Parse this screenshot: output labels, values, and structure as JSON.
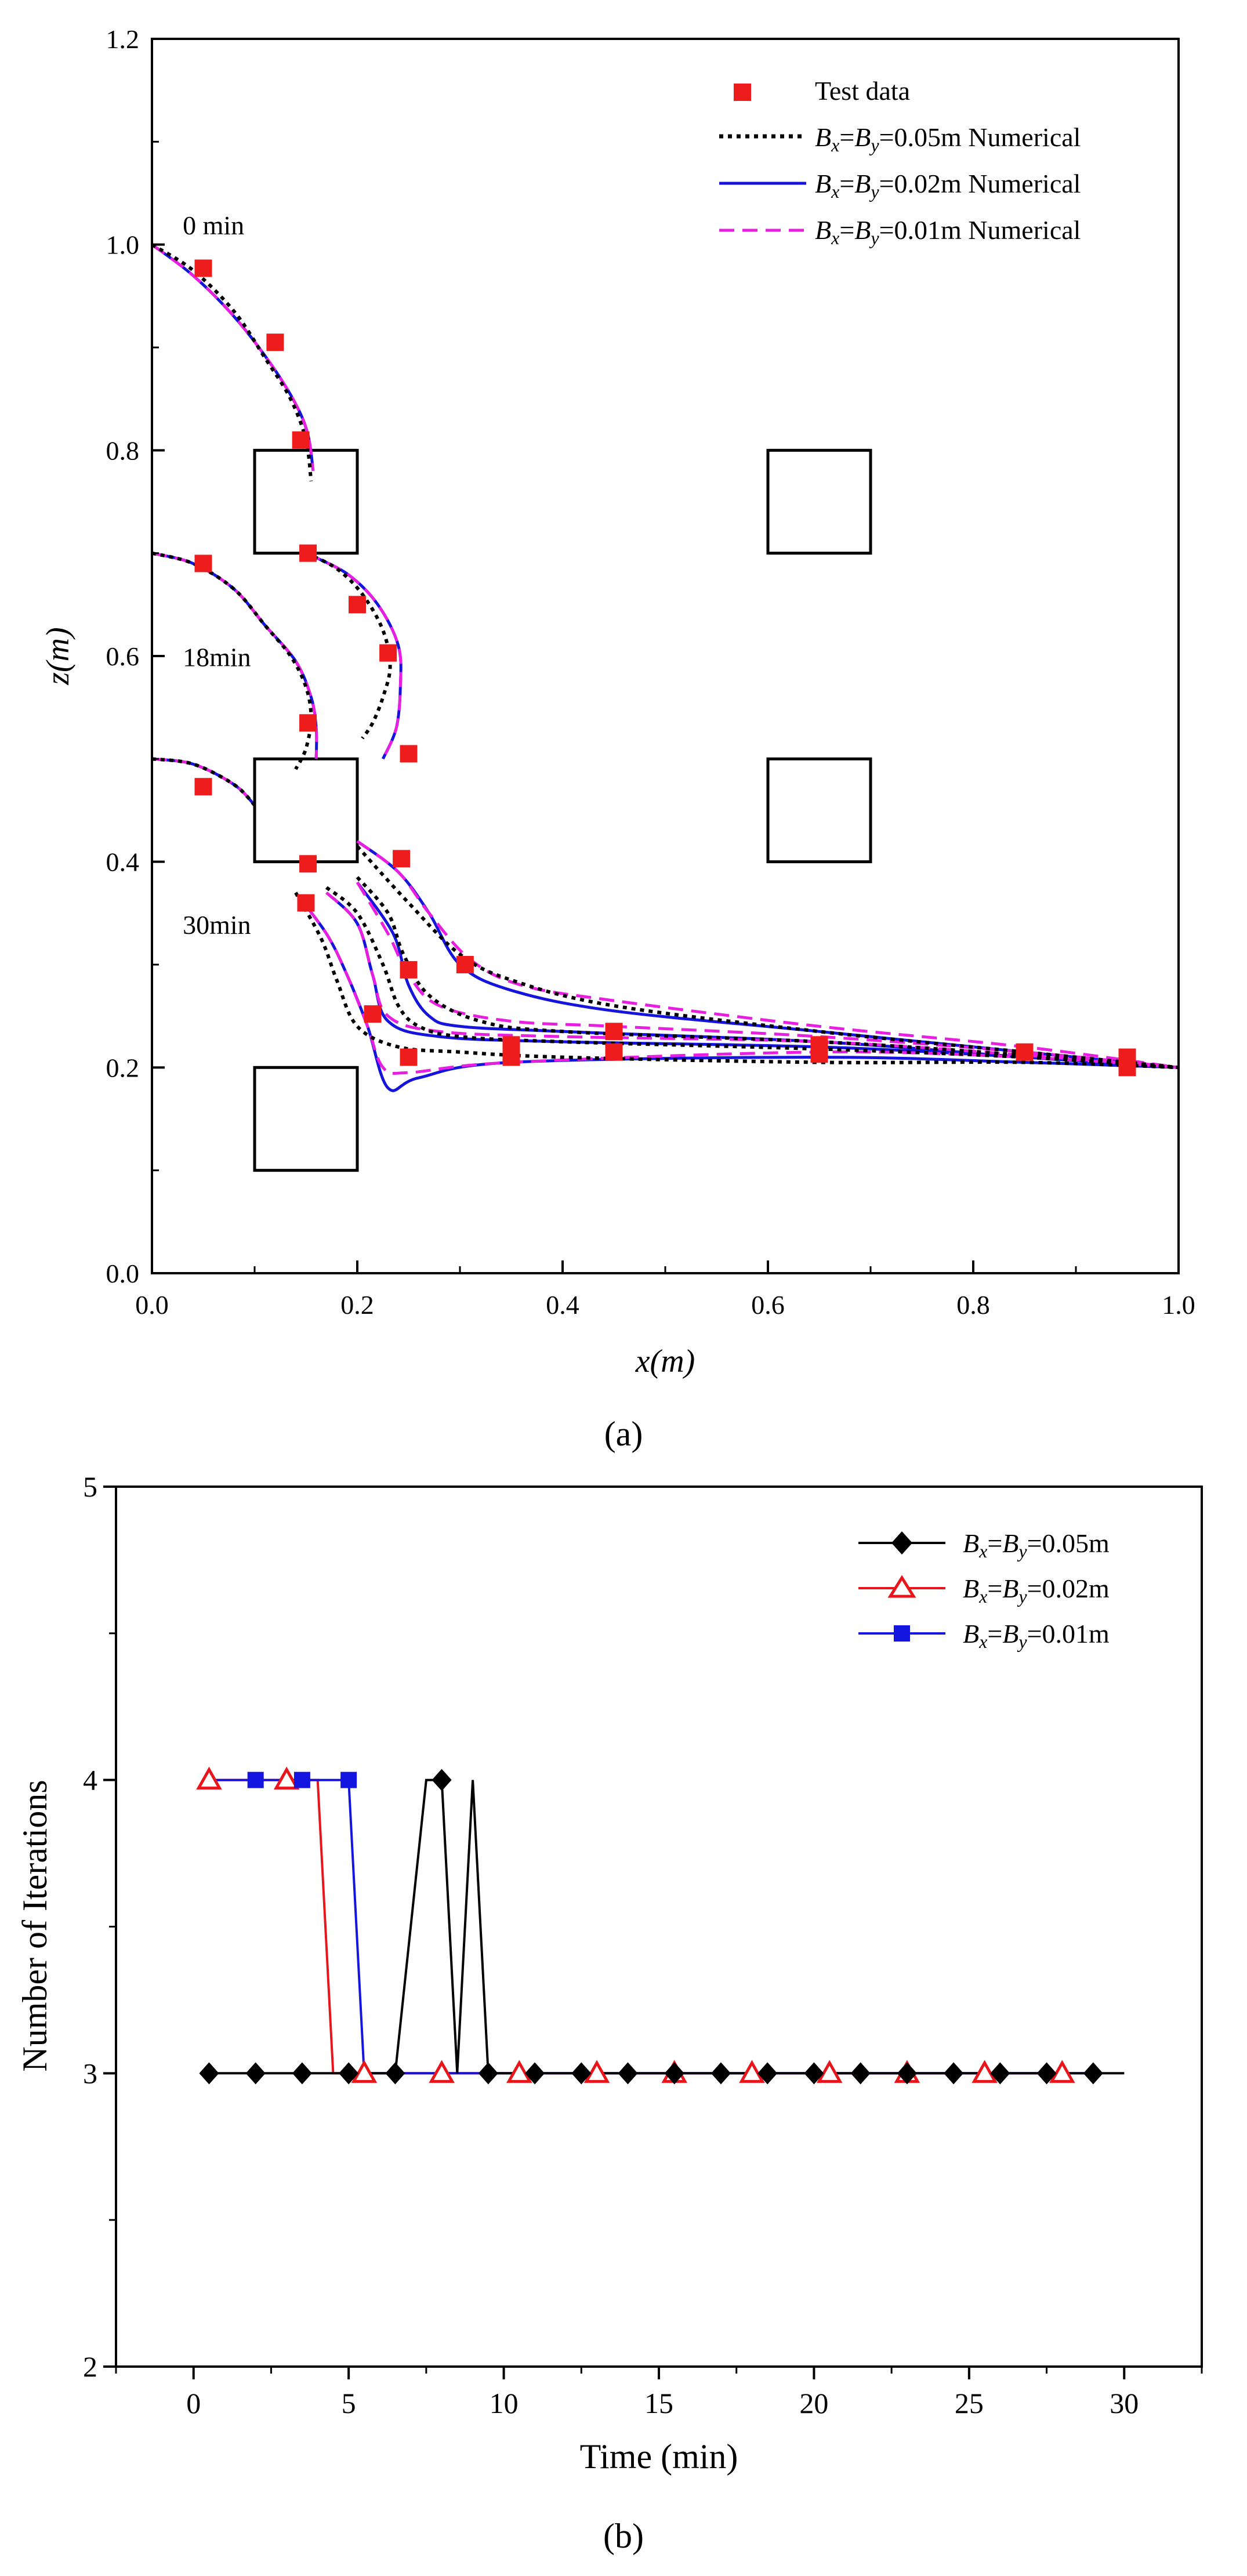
{
  "chart_data": [
    {
      "type": "line",
      "panel_label": "(a)",
      "title": "",
      "xlabel": "x(m)",
      "ylabel": "z(m)",
      "xlim": [
        0,
        1.0
      ],
      "ylim": [
        0,
        1.2
      ],
      "xticks": [
        "0.0",
        "0.2",
        "0.4",
        "0.6",
        "0.8",
        "1.0"
      ],
      "yticks": [
        "0.0",
        "0.2",
        "0.4",
        "0.6",
        "0.8",
        "1.0",
        "1.2"
      ],
      "legend_position": "top-right",
      "legend": [
        {
          "label": "Test data"
        },
        {
          "label": "Bx=By=0.05m Numerical"
        },
        {
          "label": "Bx=By=0.02m Numerical"
        },
        {
          "label": "Bx=By=0.01m Numerical"
        }
      ],
      "annotations": [
        {
          "text": "0 min",
          "x": 0.03,
          "y": 1.01
        },
        {
          "text": "18min",
          "x": 0.03,
          "y": 0.59
        },
        {
          "text": "30min",
          "x": 0.03,
          "y": 0.33
        }
      ],
      "obstacles": [
        {
          "x": [
            0.1,
            0.2
          ],
          "y": [
            0.7,
            0.8
          ]
        },
        {
          "x": [
            0.6,
            0.7
          ],
          "y": [
            0.7,
            0.8
          ]
        },
        {
          "x": [
            0.1,
            0.2
          ],
          "y": [
            0.4,
            0.5
          ]
        },
        {
          "x": [
            0.6,
            0.7
          ],
          "y": [
            0.4,
            0.5
          ]
        },
        {
          "x": [
            0.1,
            0.2
          ],
          "y": [
            0.1,
            0.2
          ]
        }
      ],
      "test_data": {
        "x": [
          0.05,
          0.12,
          0.145,
          0.152,
          0.2,
          0.23,
          0.152,
          0.25,
          0.05,
          0.152,
          0.243,
          0.05,
          0.15,
          0.25,
          0.305,
          0.215,
          0.25,
          0.35,
          0.35,
          0.45,
          0.45,
          0.65,
          0.65,
          0.85,
          0.95,
          0.95
        ],
        "y": [
          0.977,
          0.905,
          0.81,
          0.7,
          0.65,
          0.603,
          0.535,
          0.505,
          0.69,
          0.398,
          0.403,
          0.473,
          0.36,
          0.295,
          0.3,
          0.252,
          0.21,
          0.222,
          0.21,
          0.235,
          0.215,
          0.222,
          0.213,
          0.215,
          0.21,
          0.2
        ]
      },
      "series": [
        {
          "name": "Bx=By=0.05m Numerical",
          "style": "dotted-black",
          "curves": [
            {
              "x": [
                0,
                0.04,
                0.08,
                0.11,
                0.135,
                0.15,
                0.155
              ],
              "y": [
                1.0,
                0.975,
                0.935,
                0.89,
                0.85,
                0.81,
                0.77
              ]
            },
            {
              "x": [
                0,
                0.04,
                0.08,
                0.11,
                0.135,
                0.15,
                0.155,
                0.15,
                0.14
              ],
              "y": [
                0.7,
                0.69,
                0.665,
                0.63,
                0.6,
                0.57,
                0.54,
                0.51,
                0.49
              ]
            },
            {
              "x": [
                0.15,
                0.18,
                0.205,
                0.225,
                0.232,
                0.225,
                0.215,
                0.205
              ],
              "y": [
                0.7,
                0.685,
                0.66,
                0.625,
                0.59,
                0.56,
                0.535,
                0.52
              ]
            },
            {
              "x": [
                0,
                0.04,
                0.08,
                0.1
              ],
              "y": [
                0.5,
                0.495,
                0.475,
                0.455
              ]
            },
            {
              "x": [
                0.2,
                0.25,
                0.3,
                0.35,
                0.45,
                0.65,
                0.85,
                1.0
              ],
              "y": [
                0.415,
                0.36,
                0.31,
                0.285,
                0.26,
                0.235,
                0.215,
                0.2
              ]
            },
            {
              "x": [
                0.2,
                0.23,
                0.245,
                0.27,
                0.32,
                0.4,
                0.65,
                0.85,
                1.0
              ],
              "y": [
                0.385,
                0.35,
                0.31,
                0.27,
                0.245,
                0.235,
                0.225,
                0.212,
                0.2
              ]
            },
            {
              "x": [
                0.17,
                0.2,
                0.225,
                0.24,
                0.26,
                0.3,
                0.4,
                0.65,
                0.85,
                1.0
              ],
              "y": [
                0.375,
                0.35,
                0.3,
                0.26,
                0.24,
                0.23,
                0.225,
                0.218,
                0.21,
                0.2
              ]
            },
            {
              "x": [
                0.14,
                0.165,
                0.18,
                0.2,
                0.24,
                0.3,
                0.4,
                0.65,
                0.85,
                1.0
              ],
              "y": [
                0.37,
                0.325,
                0.285,
                0.24,
                0.22,
                0.215,
                0.21,
                0.205,
                0.205,
                0.2
              ]
            }
          ]
        },
        {
          "name": "Bx=By=0.02m Numerical",
          "style": "solid-blue",
          "curves": [
            {
              "x": [
                0,
                0.04,
                0.08,
                0.115,
                0.14,
                0.152,
                0.157
              ],
              "y": [
                1.0,
                0.97,
                0.93,
                0.885,
                0.845,
                0.815,
                0.78
              ]
            },
            {
              "x": [
                0,
                0.04,
                0.08,
                0.11,
                0.14,
                0.155,
                0.16,
                0.16
              ],
              "y": [
                0.7,
                0.69,
                0.665,
                0.63,
                0.595,
                0.56,
                0.53,
                0.5
              ]
            },
            {
              "x": [
                0.15,
                0.19,
                0.22,
                0.24,
                0.242,
                0.238,
                0.225
              ],
              "y": [
                0.7,
                0.68,
                0.65,
                0.61,
                0.57,
                0.53,
                0.5
              ]
            },
            {
              "x": [
                0,
                0.04,
                0.08,
                0.1
              ],
              "y": [
                0.5,
                0.495,
                0.475,
                0.455
              ]
            },
            {
              "x": [
                0.2,
                0.24,
                0.27,
                0.3,
                0.35,
                0.45,
                0.65,
                0.85,
                1.0
              ],
              "y": [
                0.42,
                0.39,
                0.35,
                0.3,
                0.275,
                0.255,
                0.235,
                0.215,
                0.2
              ]
            },
            {
              "x": [
                0.2,
                0.235,
                0.25,
                0.27,
                0.3,
                0.4,
                0.65,
                0.85,
                1.0
              ],
              "y": [
                0.38,
                0.33,
                0.28,
                0.25,
                0.24,
                0.235,
                0.225,
                0.21,
                0.2
              ]
            },
            {
              "x": [
                0.17,
                0.2,
                0.215,
                0.23,
                0.28,
                0.4,
                0.65,
                0.85,
                1.0
              ],
              "y": [
                0.37,
                0.34,
                0.29,
                0.245,
                0.23,
                0.225,
                0.22,
                0.21,
                0.2
              ]
            },
            {
              "x": [
                0.14,
                0.17,
                0.19,
                0.21,
                0.23,
                0.26,
                0.35,
                0.65,
                0.85,
                1.0
              ],
              "y": [
                0.37,
                0.33,
                0.29,
                0.24,
                0.18,
                0.19,
                0.205,
                0.21,
                0.205,
                0.2
              ]
            }
          ]
        },
        {
          "name": "Bx=By=0.01m Numerical",
          "style": "dashed-magenta",
          "curves": [
            {
              "x": [
                0,
                0.04,
                0.08,
                0.115,
                0.14,
                0.152,
                0.157
              ],
              "y": [
                1.0,
                0.97,
                0.93,
                0.885,
                0.845,
                0.815,
                0.78
              ]
            },
            {
              "x": [
                0,
                0.04,
                0.08,
                0.11,
                0.14,
                0.155,
                0.16,
                0.16
              ],
              "y": [
                0.7,
                0.69,
                0.665,
                0.63,
                0.595,
                0.56,
                0.53,
                0.5
              ]
            },
            {
              "x": [
                0.15,
                0.19,
                0.22,
                0.24,
                0.242,
                0.238,
                0.225
              ],
              "y": [
                0.7,
                0.68,
                0.65,
                0.61,
                0.57,
                0.53,
                0.5
              ]
            },
            {
              "x": [
                0,
                0.04,
                0.08,
                0.1
              ],
              "y": [
                0.5,
                0.495,
                0.475,
                0.455
              ]
            },
            {
              "x": [
                0.2,
                0.24,
                0.27,
                0.31,
                0.36,
                0.45,
                0.65,
                0.85,
                1.0
              ],
              "y": [
                0.42,
                0.39,
                0.35,
                0.305,
                0.28,
                0.265,
                0.24,
                0.22,
                0.2
              ]
            },
            {
              "x": [
                0.2,
                0.23,
                0.25,
                0.28,
                0.35,
                0.45,
                0.65,
                0.85,
                1.0
              ],
              "y": [
                0.38,
                0.33,
                0.29,
                0.26,
                0.245,
                0.24,
                0.23,
                0.215,
                0.2
              ]
            },
            {
              "x": [
                0.17,
                0.2,
                0.215,
                0.23,
                0.28,
                0.4,
                0.65,
                0.85,
                1.0
              ],
              "y": [
                0.37,
                0.34,
                0.29,
                0.25,
                0.235,
                0.23,
                0.225,
                0.212,
                0.2
              ]
            },
            {
              "x": [
                0.14,
                0.17,
                0.19,
                0.21,
                0.225,
                0.25,
                0.35,
                0.65,
                0.85,
                1.0
              ],
              "y": [
                0.37,
                0.33,
                0.29,
                0.24,
                0.2,
                0.195,
                0.205,
                0.215,
                0.21,
                0.2
              ]
            }
          ]
        }
      ]
    },
    {
      "type": "line",
      "panel_label": "(b)",
      "title": "",
      "xlabel": "Time (min)",
      "ylabel": "Number of Iterations",
      "xlim": [
        -2.5,
        32.5
      ],
      "ylim": [
        2,
        5
      ],
      "xticks": [
        "0",
        "5",
        "10",
        "15",
        "20",
        "25",
        "30"
      ],
      "yticks": [
        "2",
        "3",
        "4",
        "5"
      ],
      "legend_position": "top-right",
      "series": [
        {
          "name": "Bx=By=0.05m",
          "marker": "filled-diamond",
          "color": "#000000",
          "x": [
            0.5,
            2,
            3.5,
            5,
            6.5,
            7.5,
            8,
            8.5,
            9,
            9.5,
            11,
            12.5,
            14,
            15.5,
            17,
            18.5,
            20,
            21.5,
            23,
            24.5,
            26,
            27.5,
            29,
            30
          ],
          "y": [
            3,
            3,
            3,
            3,
            3,
            4,
            4,
            3,
            4,
            3,
            3,
            3,
            3,
            3,
            3,
            3,
            3,
            3,
            3,
            3,
            3,
            3,
            3,
            3
          ],
          "marker_x": [
            0.5,
            2,
            3.5,
            5,
            6.5,
            8,
            9.5,
            11,
            12.5,
            14,
            15.5,
            17,
            18.5,
            20,
            21.5,
            23,
            24.5,
            26,
            27.5,
            29
          ]
        },
        {
          "name": "Bx=By=0.02m",
          "marker": "open-triangle",
          "color": "#e8161b",
          "x": [
            0.5,
            3,
            4,
            4.5,
            5,
            5.5,
            8,
            10.5,
            13,
            15.5,
            18,
            20.5,
            23,
            25.5,
            28
          ],
          "y": [
            4,
            4,
            4,
            3,
            3,
            3,
            3,
            3,
            3,
            3,
            3,
            3,
            3,
            3,
            3
          ],
          "marker_x": [
            0.5,
            3,
            5.5,
            8,
            10.5,
            13,
            15.5,
            18,
            20.5,
            23,
            25.5,
            28
          ]
        },
        {
          "name": "Bx=By=0.01m",
          "marker": "filled-square",
          "color": "#1515e0",
          "x": [
            0.5,
            2,
            3.5,
            5,
            5.5,
            6,
            9.5,
            11,
            12.5,
            14,
            15.5,
            17,
            18.5,
            20,
            21.5,
            23,
            24.5,
            26,
            27.5,
            29
          ],
          "y": [
            4,
            4,
            4,
            4,
            3,
            3,
            3,
            3,
            3,
            3,
            3,
            3,
            3,
            3,
            3,
            3,
            3,
            3,
            3,
            3
          ],
          "marker_x": [
            2,
            3.5,
            5
          ]
        }
      ]
    }
  ],
  "colors": {
    "test_marker": "#ee1c1c",
    "num_005": "#000000",
    "num_002": "#1414dd",
    "num_001": "#e81ee0"
  }
}
